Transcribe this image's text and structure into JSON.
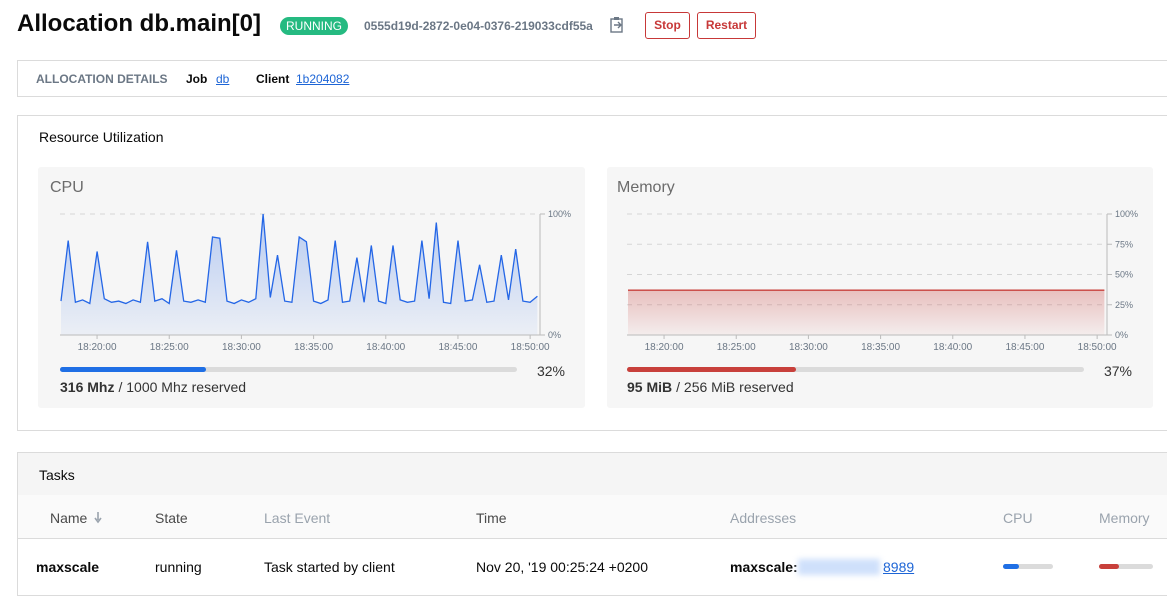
{
  "header": {
    "title": "Allocation db.main[0]",
    "status": "RUNNING",
    "id": "0555d19d-2872-0e04-0376-219033cdf55a",
    "buttons": [
      "Stop",
      "Restart"
    ]
  },
  "details": {
    "label": "ALLOCATION DETAILS",
    "job_label": "Job",
    "job": "db",
    "client_label": "Client",
    "client": "1b204082"
  },
  "resources": {
    "title": "Resource Utilization",
    "summaries": [
      {
        "used": "316 Mhz",
        "reserved": "/ 1000 Mhz reserved",
        "percent": 32,
        "percent_label": "32%",
        "color": "#1f6fe5"
      },
      {
        "used": "95 MiB",
        "reserved": "/ 256 MiB reserved",
        "percent": 37,
        "percent_label": "37%",
        "color": "#c8403b"
      }
    ]
  },
  "chart_data": [
    {
      "type": "line",
      "title": "CPU",
      "color": "#2466e6",
      "x": [
        "18:17:30",
        "18:18:00",
        "18:18:30",
        "18:19:00",
        "18:19:30",
        "18:20:00",
        "18:20:30",
        "18:21:00",
        "18:21:30",
        "18:22:00",
        "18:22:30",
        "18:23:00",
        "18:23:30",
        "18:24:00",
        "18:24:30",
        "18:25:00",
        "18:25:30",
        "18:26:00",
        "18:26:30",
        "18:27:00",
        "18:27:30",
        "18:28:00",
        "18:28:30",
        "18:29:00",
        "18:29:30",
        "18:30:00",
        "18:30:30",
        "18:31:00",
        "18:31:30",
        "18:32:00",
        "18:32:30",
        "18:33:00",
        "18:33:30",
        "18:34:00",
        "18:34:30",
        "18:35:00",
        "18:35:30",
        "18:36:00",
        "18:36:30",
        "18:37:00",
        "18:37:30",
        "18:38:00",
        "18:38:30",
        "18:39:00",
        "18:39:30",
        "18:40:00",
        "18:40:30",
        "18:41:00",
        "18:41:30",
        "18:42:00",
        "18:42:30",
        "18:43:00",
        "18:43:30",
        "18:44:00",
        "18:44:30",
        "18:45:00",
        "18:45:30",
        "18:46:00",
        "18:46:30",
        "18:47:00",
        "18:47:30",
        "18:48:00",
        "18:48:30",
        "18:49:00",
        "18:49:30",
        "18:50:00",
        "18:50:30"
      ],
      "values": [
        28,
        78,
        27,
        29,
        26,
        69,
        30,
        27,
        28,
        26,
        29,
        27,
        77,
        28,
        30,
        26,
        70,
        28,
        27,
        29,
        27,
        81,
        80,
        28,
        26,
        29,
        27,
        30,
        100,
        31,
        66,
        28,
        27,
        81,
        77,
        28,
        26,
        29,
        78,
        27,
        28,
        64,
        27,
        74,
        28,
        26,
        74,
        29,
        27,
        28,
        78,
        30,
        93,
        27,
        26,
        78,
        28,
        29,
        58,
        27,
        28,
        66,
        29,
        71,
        28,
        27,
        32
      ],
      "xlim": [
        "18:17:26",
        "18:50:41"
      ],
      "xticks": [
        "18:20:00",
        "18:25:00",
        "18:30:00",
        "18:35:00",
        "18:40:00",
        "18:45:00",
        "18:50:00"
      ],
      "ylim": [
        0,
        100
      ],
      "yticks": [
        {
          "value": 0,
          "label": "0%"
        },
        {
          "value": 100,
          "label": "100%"
        }
      ]
    },
    {
      "type": "line",
      "title": "Memory",
      "color": "#c8403b",
      "x": [
        "18:17:30",
        "18:50:30"
      ],
      "values": [
        37,
        37
      ],
      "xlim": [
        "18:17:26",
        "18:50:41"
      ],
      "xticks": [
        "18:20:00",
        "18:25:00",
        "18:30:00",
        "18:35:00",
        "18:40:00",
        "18:45:00",
        "18:50:00"
      ],
      "ylim": [
        0,
        100
      ],
      "yticks": [
        {
          "value": 0,
          "label": "0%"
        },
        {
          "value": 25,
          "label": "25%"
        },
        {
          "value": 50,
          "label": "50%"
        },
        {
          "value": 75,
          "label": "75%"
        },
        {
          "value": 100,
          "label": "100%"
        }
      ]
    }
  ],
  "tasks": {
    "title": "Tasks",
    "headers": [
      "Name",
      "State",
      "Last Event",
      "Time",
      "Addresses",
      "CPU",
      "Memory"
    ],
    "rows": [
      {
        "name": "maxscale",
        "state": "running",
        "last_event": "Task started by client",
        "time": "Nov 20, '19 00:25:24 +0200",
        "address_label": "maxscale:",
        "address": "8989",
        "cpu": 32,
        "memory": 37
      }
    ]
  }
}
